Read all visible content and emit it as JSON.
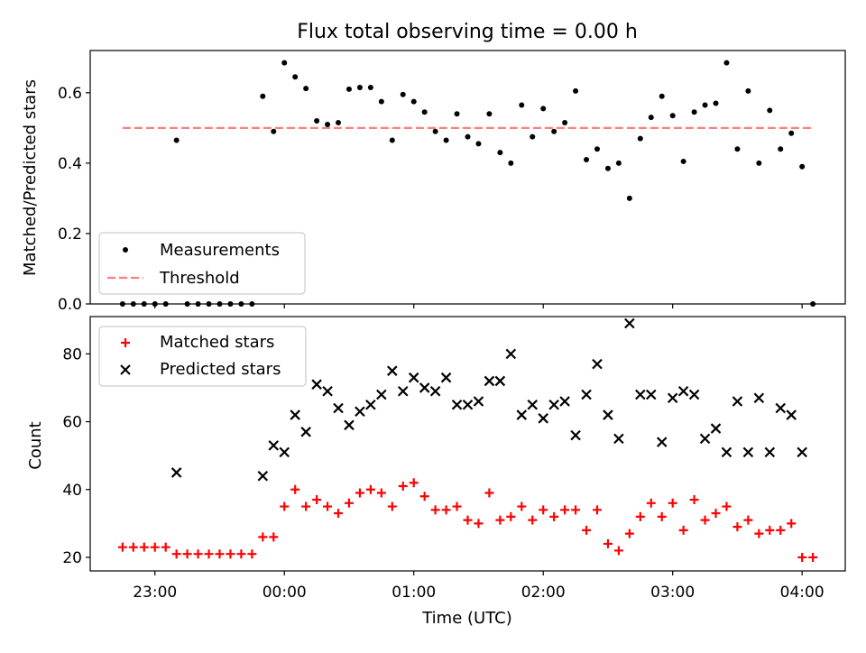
{
  "chart_data": [
    {
      "type": "scatter",
      "title": "Flux total observing time = 0.00 h",
      "xlabel": "",
      "ylabel": "Matched/Predicted stars",
      "ylim": [
        0,
        0.72
      ],
      "yticks": [
        "0.0",
        "0.2",
        "0.4",
        "0.6"
      ],
      "grid": false,
      "legend_position": "lower-left",
      "series": [
        {
          "name": "Measurements",
          "marker": "dot",
          "color": "#000000",
          "x": [
            "22:45",
            "22:50",
            "22:55",
            "23:00",
            "23:05",
            "23:10",
            "23:15",
            "23:20",
            "23:25",
            "23:30",
            "23:35",
            "23:40",
            "23:45",
            "23:50",
            "23:55",
            "00:00",
            "00:05",
            "00:10",
            "00:15",
            "00:20",
            "00:25",
            "00:30",
            "00:35",
            "00:40",
            "00:45",
            "00:50",
            "00:55",
            "01:00",
            "01:05",
            "01:10",
            "01:15",
            "01:20",
            "01:25",
            "01:30",
            "01:35",
            "01:40",
            "01:45",
            "01:50",
            "01:55",
            "02:00",
            "02:05",
            "02:10",
            "02:15",
            "02:20",
            "02:25",
            "02:30",
            "02:35",
            "02:40",
            "02:45",
            "02:50",
            "02:55",
            "03:00",
            "03:05",
            "03:10",
            "03:15",
            "03:20",
            "03:25",
            "03:30",
            "03:35",
            "03:40",
            "03:45",
            "03:50",
            "03:55",
            "04:00",
            "04:05"
          ],
          "y": [
            0.0,
            0.0,
            0.0,
            0.0,
            0.0,
            0.465,
            0.0,
            0.0,
            0.0,
            0.0,
            0.0,
            0.0,
            0.0,
            0.59,
            0.49,
            0.685,
            0.645,
            0.612,
            0.52,
            0.51,
            0.515,
            0.61,
            0.615,
            0.615,
            0.575,
            0.465,
            0.595,
            0.575,
            0.545,
            0.49,
            0.465,
            0.54,
            0.475,
            0.455,
            0.54,
            0.43,
            0.4,
            0.565,
            0.475,
            0.555,
            0.49,
            0.515,
            0.605,
            0.41,
            0.44,
            0.385,
            0.4,
            0.3,
            0.47,
            0.53,
            0.59,
            0.535,
            0.405,
            0.545,
            0.565,
            0.57,
            0.685,
            0.44,
            0.605,
            0.4,
            0.55,
            0.44,
            0.485,
            0.39,
            0.0
          ]
        },
        {
          "name": "Threshold",
          "style": "dashed",
          "color": "#ff7f7f",
          "x": [
            "22:45",
            "04:05"
          ],
          "y": [
            0.5,
            0.5
          ]
        }
      ]
    },
    {
      "type": "scatter",
      "title": "",
      "xlabel": "Time (UTC)",
      "ylabel": "Count",
      "ylim": [
        16,
        91
      ],
      "yticks": [
        "20",
        "40",
        "60",
        "80"
      ],
      "xticks": [
        "23:00",
        "00:00",
        "01:00",
        "02:00",
        "03:00",
        "04:00"
      ],
      "xlim": [
        "22:30",
        "04:20"
      ],
      "grid": false,
      "legend_position": "top-left",
      "series": [
        {
          "name": "Matched stars",
          "marker": "plus",
          "color": "#ff0000",
          "x": [
            "22:45",
            "22:50",
            "22:55",
            "23:00",
            "23:05",
            "23:10",
            "23:15",
            "23:20",
            "23:25",
            "23:30",
            "23:35",
            "23:40",
            "23:45",
            "23:50",
            "23:55",
            "00:00",
            "00:05",
            "00:10",
            "00:15",
            "00:20",
            "00:25",
            "00:30",
            "00:35",
            "00:40",
            "00:45",
            "00:50",
            "00:55",
            "01:00",
            "01:05",
            "01:10",
            "01:15",
            "01:20",
            "01:25",
            "01:30",
            "01:35",
            "01:40",
            "01:45",
            "01:50",
            "01:55",
            "02:00",
            "02:05",
            "02:10",
            "02:15",
            "02:20",
            "02:25",
            "02:30",
            "02:35",
            "02:40",
            "02:45",
            "02:50",
            "02:55",
            "03:00",
            "03:05",
            "03:10",
            "03:15",
            "03:20",
            "03:25",
            "03:30",
            "03:35",
            "03:40",
            "03:45",
            "03:50",
            "03:55",
            "04:00",
            "04:05"
          ],
          "y": [
            23,
            23,
            23,
            23,
            23,
            21,
            21,
            21,
            21,
            21,
            21,
            21,
            21,
            26,
            26,
            35,
            40,
            35,
            37,
            35,
            33,
            36,
            39,
            40,
            39,
            35,
            41,
            42,
            38,
            34,
            34,
            35,
            31,
            30,
            39,
            31,
            32,
            35,
            31,
            34,
            32,
            34,
            34,
            28,
            34,
            24,
            22,
            27,
            32,
            36,
            32,
            36,
            28,
            37,
            31,
            33,
            35,
            29,
            31,
            27,
            28,
            28,
            30,
            20,
            20
          ]
        },
        {
          "name": "Predicted stars",
          "marker": "x",
          "color": "#000000",
          "x": [
            "23:10",
            "23:50",
            "23:55",
            "00:00",
            "00:05",
            "00:10",
            "00:15",
            "00:20",
            "00:25",
            "00:30",
            "00:35",
            "00:40",
            "00:45",
            "00:50",
            "00:55",
            "01:00",
            "01:05",
            "01:10",
            "01:15",
            "01:20",
            "01:25",
            "01:30",
            "01:35",
            "01:40",
            "01:45",
            "01:50",
            "01:55",
            "02:00",
            "02:05",
            "02:10",
            "02:15",
            "02:20",
            "02:25",
            "02:30",
            "02:35",
            "02:40",
            "02:45",
            "02:50",
            "02:55",
            "03:00",
            "03:05",
            "03:10",
            "03:15",
            "03:20",
            "03:25",
            "03:30",
            "03:35",
            "03:40",
            "03:45",
            "03:50",
            "03:55",
            "04:00"
          ],
          "y": [
            45,
            44,
            53,
            51,
            62,
            57,
            71,
            69,
            64,
            59,
            63,
            65,
            68,
            75,
            69,
            73,
            70,
            69,
            73,
            65,
            65,
            66,
            72,
            72,
            80,
            62,
            65,
            61,
            65,
            66,
            56,
            68,
            77,
            62,
            55,
            89,
            68,
            68,
            54,
            67,
            69,
            68,
            55,
            58,
            51,
            66,
            51,
            67,
            51,
            64,
            62,
            51
          ]
        }
      ]
    }
  ]
}
